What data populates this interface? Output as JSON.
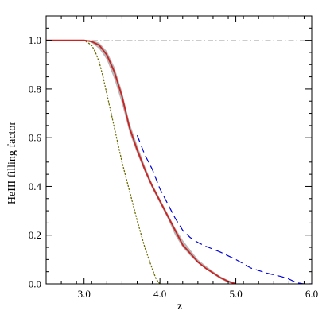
{
  "chart_data": {
    "type": "line",
    "title": "",
    "xlabel": "z",
    "ylabel": "HeIII filling factor",
    "xlim": [
      2.5,
      6.0
    ],
    "ylim": [
      0.0,
      1.1
    ],
    "grid": false,
    "legend": "none",
    "x_ticks": [
      3.0,
      4.0,
      5.0,
      6.0
    ],
    "x_tick_labels": [
      "3.0",
      "4.0",
      "5.0",
      "6.0"
    ],
    "x_minor_step": 0.2,
    "y_ticks": [
      0.0,
      0.2,
      0.4,
      0.6,
      0.8,
      1.0
    ],
    "y_tick_labels": [
      "0.0",
      "0.2",
      "0.4",
      "0.6",
      "0.8",
      "1.0"
    ],
    "y_minor_step": 0.05,
    "band": {
      "color": "#aaaaaa",
      "x": [
        2.5,
        3.0,
        3.1,
        3.2,
        3.3,
        3.4,
        3.5,
        3.6,
        3.7,
        3.8,
        3.9,
        4.0,
        4.1,
        4.2,
        4.3,
        4.4,
        4.5,
        4.6,
        4.7,
        4.8,
        4.9,
        5.0
      ],
      "lower": [
        1.0,
        1.0,
        0.99,
        0.965,
        0.92,
        0.84,
        0.74,
        0.62,
        0.535,
        0.46,
        0.39,
        0.33,
        0.27,
        0.2,
        0.15,
        0.115,
        0.085,
        0.062,
        0.04,
        0.02,
        0.005,
        0.0
      ],
      "upper": [
        1.0,
        1.0,
        1.0,
        0.99,
        0.955,
        0.89,
        0.79,
        0.66,
        0.57,
        0.485,
        0.41,
        0.35,
        0.29,
        0.23,
        0.18,
        0.14,
        0.1,
        0.075,
        0.052,
        0.03,
        0.015,
        0.005
      ]
    },
    "series": [
      {
        "color": "#cccccc",
        "style": "dash-dot",
        "x": [
          2.5,
          6.0
        ],
        "y": [
          1.0,
          1.0
        ]
      },
      {
        "color": "#0000dd",
        "style": "dashed",
        "x": [
          3.7,
          3.8,
          3.9,
          4.0,
          4.1,
          4.2,
          4.3,
          4.4,
          4.5,
          4.6,
          4.8,
          5.0,
          5.2,
          5.4,
          5.6,
          5.7,
          5.8,
          5.9,
          6.0
        ],
        "y": [
          0.61,
          0.53,
          0.47,
          0.39,
          0.33,
          0.27,
          0.22,
          0.19,
          0.17,
          0.155,
          0.13,
          0.1,
          0.065,
          0.045,
          0.03,
          0.02,
          0.005,
          0.0,
          0.0
        ]
      },
      {
        "color": "#6b6b00",
        "style": "dotted",
        "x": [
          2.5,
          3.0,
          3.1,
          3.15,
          3.2,
          3.25,
          3.3,
          3.4,
          3.5,
          3.6,
          3.7,
          3.8,
          3.9,
          3.95,
          4.0
        ],
        "y": [
          1.0,
          1.0,
          0.98,
          0.95,
          0.91,
          0.85,
          0.78,
          0.64,
          0.5,
          0.38,
          0.26,
          0.15,
          0.06,
          0.02,
          0.0
        ]
      },
      {
        "color": "#cc2222",
        "style": "solid",
        "x": [
          2.5,
          3.0,
          3.1,
          3.2,
          3.3,
          3.4,
          3.5,
          3.6,
          3.7,
          3.8,
          3.9,
          4.0,
          4.1,
          4.2,
          4.3,
          4.4,
          4.5,
          4.6,
          4.7,
          4.8,
          4.9,
          5.0
        ],
        "y": [
          1.0,
          1.0,
          0.995,
          0.98,
          0.94,
          0.87,
          0.77,
          0.64,
          0.55,
          0.47,
          0.4,
          0.34,
          0.28,
          0.22,
          0.16,
          0.125,
          0.09,
          0.065,
          0.045,
          0.025,
          0.01,
          0.0
        ]
      }
    ]
  }
}
